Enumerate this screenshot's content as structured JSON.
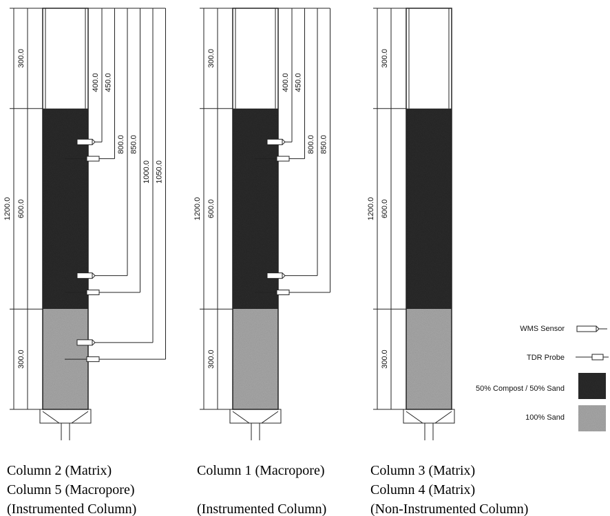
{
  "columns": [
    {
      "caption": [
        "Column 2 (Matrix)",
        "Column 5 (Macropore)",
        "(Instrumented Column)"
      ],
      "total": "1200.0",
      "segments": [
        "300.0",
        "600.0",
        "300.0"
      ],
      "sensors": [
        "400.0",
        "450.0",
        "800.0",
        "850.0",
        "1000.0",
        "1050.0"
      ]
    },
    {
      "caption": [
        "Column 1 (Macropore)",
        "(Instrumented Column)"
      ],
      "total": "1200.0",
      "segments": [
        "300.0",
        "600.0",
        "300.0"
      ],
      "sensors": [
        "400.0",
        "450.0",
        "800.0",
        "850.0"
      ]
    },
    {
      "caption": [
        "Column 3 (Matrix)",
        "Column 4 (Matrix)",
        "(Non-Instrumented Column)"
      ],
      "total": "1200.0",
      "segments": [
        "300.0",
        "600.0",
        "300.0"
      ]
    }
  ],
  "legend": [
    "WMS Sensor",
    "TDR Probe",
    "50% Compost / 50% Sand",
    "100% Sand"
  ]
}
